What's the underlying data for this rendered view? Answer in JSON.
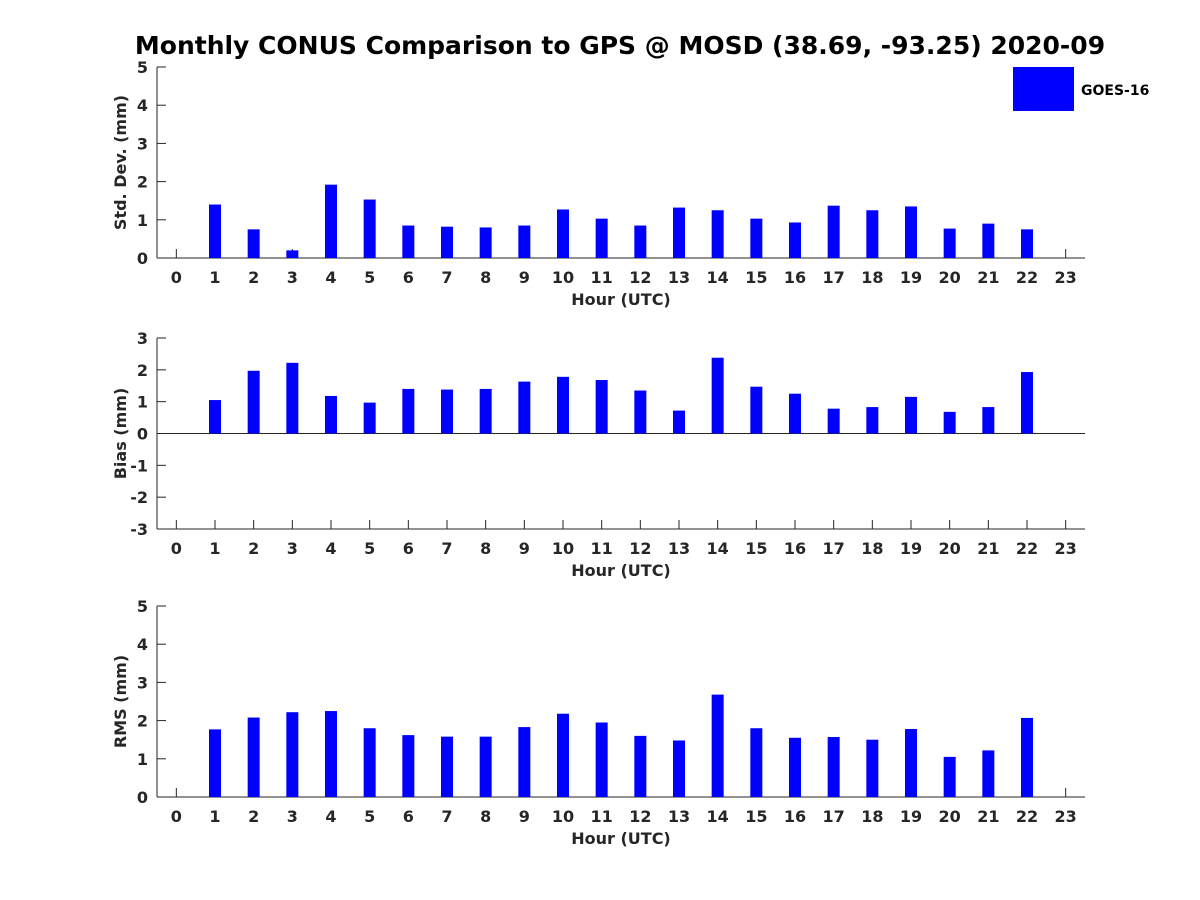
{
  "title": "Monthly CONUS Comparison to GPS @ MOSD (38.69, -93.25) 2020-09",
  "legend": {
    "label": "GOES-16",
    "color": "#0000ff"
  },
  "chart_data": [
    {
      "type": "bar",
      "xlabel": "Hour (UTC)",
      "ylabel": "Std. Dev. (mm)",
      "ylim": [
        0,
        5
      ],
      "yticks": [
        0,
        1,
        2,
        3,
        4,
        5
      ],
      "grid": false,
      "legend_position": "top-right",
      "series": [
        {
          "name": "GOES-16",
          "x": [
            1,
            2,
            3,
            4,
            5,
            6,
            7,
            8,
            9,
            10,
            11,
            12,
            13,
            14,
            15,
            16,
            17,
            18,
            19,
            20,
            21,
            22
          ],
          "values": [
            1.4,
            0.75,
            0.2,
            1.92,
            1.53,
            0.85,
            0.82,
            0.8,
            0.85,
            1.27,
            1.03,
            0.85,
            1.32,
            1.25,
            1.03,
            0.93,
            1.37,
            1.25,
            1.35,
            0.77,
            0.9,
            0.75
          ]
        }
      ],
      "categories": [
        "0",
        "1",
        "2",
        "3",
        "4",
        "5",
        "6",
        "7",
        "8",
        "9",
        "10",
        "11",
        "12",
        "13",
        "14",
        "15",
        "16",
        "17",
        "18",
        "19",
        "20",
        "21",
        "22",
        "23"
      ]
    },
    {
      "type": "bar",
      "xlabel": "Hour (UTC)",
      "ylabel": "Bias (mm)",
      "ylim": [
        -3,
        3
      ],
      "yticks": [
        -3,
        -2,
        -1,
        0,
        1,
        2,
        3
      ],
      "grid": false,
      "series": [
        {
          "name": "GOES-16",
          "x": [
            1,
            2,
            3,
            4,
            5,
            6,
            7,
            8,
            9,
            10,
            11,
            12,
            13,
            14,
            15,
            16,
            17,
            18,
            19,
            20,
            21,
            22
          ],
          "values": [
            1.05,
            1.97,
            2.22,
            1.18,
            0.97,
            1.4,
            1.38,
            1.4,
            1.63,
            1.78,
            1.68,
            1.35,
            0.72,
            2.38,
            1.47,
            1.25,
            0.78,
            0.83,
            1.15,
            0.68,
            0.83,
            1.93
          ]
        }
      ],
      "categories": [
        "0",
        "1",
        "2",
        "3",
        "4",
        "5",
        "6",
        "7",
        "8",
        "9",
        "10",
        "11",
        "12",
        "13",
        "14",
        "15",
        "16",
        "17",
        "18",
        "19",
        "20",
        "21",
        "22",
        "23"
      ]
    },
    {
      "type": "bar",
      "xlabel": "Hour (UTC)",
      "ylabel": "RMS (mm)",
      "ylim": [
        0,
        5
      ],
      "yticks": [
        0,
        1,
        2,
        3,
        4,
        5
      ],
      "grid": false,
      "series": [
        {
          "name": "GOES-16",
          "x": [
            1,
            2,
            3,
            4,
            5,
            6,
            7,
            8,
            9,
            10,
            11,
            12,
            13,
            14,
            15,
            16,
            17,
            18,
            19,
            20,
            21,
            22
          ],
          "values": [
            1.77,
            2.08,
            2.22,
            2.25,
            1.8,
            1.62,
            1.58,
            1.58,
            1.83,
            2.18,
            1.95,
            1.6,
            1.48,
            2.68,
            1.8,
            1.55,
            1.57,
            1.5,
            1.78,
            1.05,
            1.22,
            2.07
          ]
        }
      ],
      "categories": [
        "0",
        "1",
        "2",
        "3",
        "4",
        "5",
        "6",
        "7",
        "8",
        "9",
        "10",
        "11",
        "12",
        "13",
        "14",
        "15",
        "16",
        "17",
        "18",
        "19",
        "20",
        "21",
        "22",
        "23"
      ]
    }
  ]
}
